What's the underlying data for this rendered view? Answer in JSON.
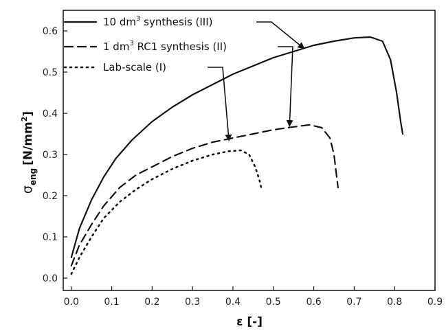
{
  "chart_data": {
    "type": "line",
    "xlabel": "ε [-]",
    "ylabel": "σeng [N/mm2]",
    "ylabel_parts": {
      "sigma": "σ",
      "sub": "eng",
      "unit": "[N/mm",
      "sup": "2",
      "close": "]"
    },
    "xlim": [
      -0.02,
      0.9
    ],
    "ylim": [
      -0.03,
      0.65
    ],
    "x_ticks": [
      "0.0",
      "0.1",
      "0.2",
      "0.3",
      "0.4",
      "0.5",
      "0.6",
      "0.7",
      "0.8",
      "0.9"
    ],
    "y_ticks": [
      "0.0",
      "0.1",
      "0.2",
      "0.3",
      "0.4",
      "0.5",
      "0.6"
    ],
    "grid": false,
    "legend_position": "top-left",
    "series": [
      {
        "name": "10 dm3 synthesis (III)",
        "name_parts": {
          "pre": "10 dm",
          "sup": "3",
          "post": " synthesis (III)"
        },
        "style": "solid",
        "points": [
          [
            0.0,
            0.05
          ],
          [
            0.02,
            0.12
          ],
          [
            0.05,
            0.19
          ],
          [
            0.08,
            0.245
          ],
          [
            0.11,
            0.29
          ],
          [
            0.15,
            0.335
          ],
          [
            0.2,
            0.38
          ],
          [
            0.25,
            0.415
          ],
          [
            0.3,
            0.445
          ],
          [
            0.35,
            0.47
          ],
          [
            0.4,
            0.495
          ],
          [
            0.45,
            0.515
          ],
          [
            0.5,
            0.535
          ],
          [
            0.55,
            0.55
          ],
          [
            0.6,
            0.565
          ],
          [
            0.65,
            0.575
          ],
          [
            0.7,
            0.583
          ],
          [
            0.74,
            0.585
          ],
          [
            0.77,
            0.575
          ],
          [
            0.79,
            0.53
          ],
          [
            0.805,
            0.45
          ],
          [
            0.815,
            0.38
          ],
          [
            0.82,
            0.35
          ]
        ]
      },
      {
        "name": "1 dm3 RC1 synthesis (II)",
        "name_parts": {
          "pre": "1 dm",
          "sup": "3",
          "post": " RC1 synthesis (II)"
        },
        "style": "dashed",
        "points": [
          [
            0.0,
            0.03
          ],
          [
            0.02,
            0.08
          ],
          [
            0.05,
            0.13
          ],
          [
            0.08,
            0.175
          ],
          [
            0.12,
            0.22
          ],
          [
            0.16,
            0.25
          ],
          [
            0.2,
            0.27
          ],
          [
            0.25,
            0.295
          ],
          [
            0.3,
            0.315
          ],
          [
            0.35,
            0.33
          ],
          [
            0.4,
            0.34
          ],
          [
            0.45,
            0.35
          ],
          [
            0.5,
            0.36
          ],
          [
            0.55,
            0.367
          ],
          [
            0.59,
            0.372
          ],
          [
            0.62,
            0.365
          ],
          [
            0.64,
            0.34
          ],
          [
            0.65,
            0.3
          ],
          [
            0.655,
            0.26
          ],
          [
            0.66,
            0.22
          ]
        ]
      },
      {
        "name": "Lab-scale (I)",
        "name_parts": {
          "pre": "Lab-scale (I)",
          "sup": "",
          "post": ""
        },
        "style": "dotted",
        "points": [
          [
            0.0,
            0.01
          ],
          [
            0.02,
            0.05
          ],
          [
            0.05,
            0.1
          ],
          [
            0.08,
            0.145
          ],
          [
            0.12,
            0.185
          ],
          [
            0.16,
            0.215
          ],
          [
            0.2,
            0.24
          ],
          [
            0.25,
            0.265
          ],
          [
            0.3,
            0.285
          ],
          [
            0.35,
            0.3
          ],
          [
            0.39,
            0.308
          ],
          [
            0.42,
            0.31
          ],
          [
            0.44,
            0.3
          ],
          [
            0.455,
            0.27
          ],
          [
            0.465,
            0.24
          ],
          [
            0.47,
            0.22
          ]
        ]
      }
    ],
    "annotations": [
      {
        "series": 0,
        "label_end": [
          0.55,
          0.61
        ],
        "arrow_tip": [
          0.575,
          0.558
        ]
      },
      {
        "series": 1,
        "label_end": [
          0.5,
          0.56
        ],
        "arrow_tip": [
          0.54,
          0.37
        ]
      },
      {
        "series": 2,
        "label_end": [
          0.33,
          0.52
        ],
        "arrow_tip": [
          0.39,
          0.335
        ]
      }
    ]
  }
}
